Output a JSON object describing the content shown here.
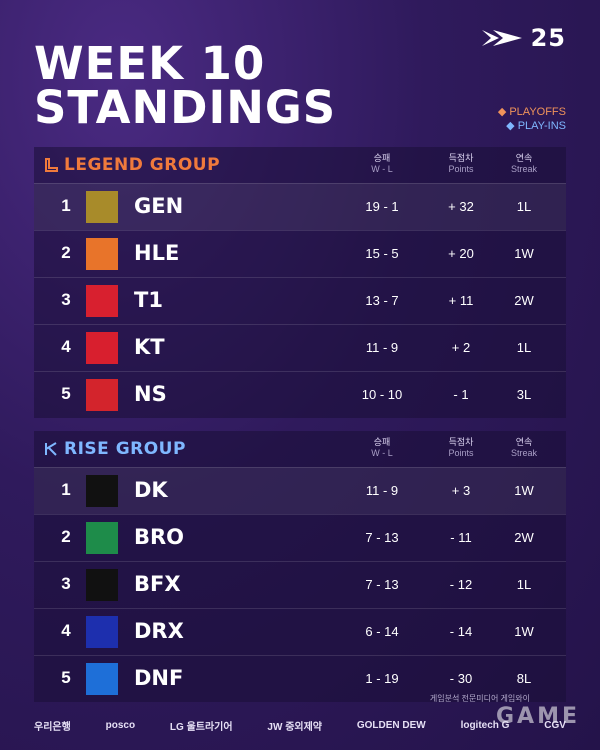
{
  "brand": {
    "year": "25"
  },
  "title": {
    "line1": "WEEK 10",
    "line2": "STANDINGS"
  },
  "legend": {
    "playoffs": "PLAYOFFS",
    "playins": "PLAY-INS"
  },
  "columns": {
    "wl_ko": "승패",
    "wl_en": "W - L",
    "pts_ko": "득점차",
    "pts_en": "Points",
    "streak_ko": "연속",
    "streak_en": "Streak"
  },
  "legend_group": {
    "title": "LEGEND GROUP",
    "rows": [
      {
        "rank": "1",
        "team": "GEN",
        "wl": "19 - 1",
        "points": "+ 32",
        "streak": "1L",
        "logo_color": "#a88b2a"
      },
      {
        "rank": "2",
        "team": "HLE",
        "wl": "15 - 5",
        "points": "+ 20",
        "streak": "1W",
        "logo_color": "#e8742a"
      },
      {
        "rank": "3",
        "team": "T1",
        "wl": "13 - 7",
        "points": "+ 11",
        "streak": "2W",
        "logo_color": "#d8202f"
      },
      {
        "rank": "4",
        "team": "KT",
        "wl": "11 - 9",
        "points": "+ 2",
        "streak": "1L",
        "logo_color": "#d81f2e"
      },
      {
        "rank": "5",
        "team": "NS",
        "wl": "10 - 10",
        "points": "- 1",
        "streak": "3L",
        "logo_color": "#d3242c"
      }
    ]
  },
  "rise_group": {
    "title": "RISE GROUP",
    "rows": [
      {
        "rank": "1",
        "team": "DK",
        "wl": "11 - 9",
        "points": "+ 3",
        "streak": "1W",
        "logo_color": "#111111"
      },
      {
        "rank": "2",
        "team": "BRO",
        "wl": "7 - 13",
        "points": "- 11",
        "streak": "2W",
        "logo_color": "#1e8c4a"
      },
      {
        "rank": "3",
        "team": "BFX",
        "wl": "7 - 13",
        "points": "- 12",
        "streak": "1L",
        "logo_color": "#111111"
      },
      {
        "rank": "4",
        "team": "DRX",
        "wl": "6 - 14",
        "points": "- 14",
        "streak": "1W",
        "logo_color": "#1d2fae"
      },
      {
        "rank": "5",
        "team": "DNF",
        "wl": "1 - 19",
        "points": "- 30",
        "streak": "8L",
        "logo_color": "#1e6fd8"
      }
    ]
  },
  "sponsors": [
    "우리은행",
    "posco",
    "LG 울트라기어",
    "JW 중외제약",
    "GOLDEN DEW",
    "logitech G",
    "CGV"
  ],
  "watermark": {
    "caption": "게임분석 전문미디어 게임와이",
    "logo": "GAME"
  }
}
